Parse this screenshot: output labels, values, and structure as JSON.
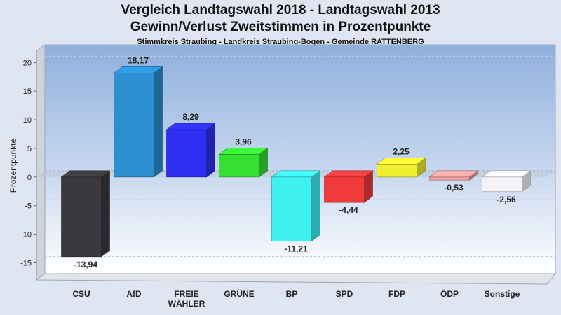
{
  "header": {
    "title_line1": "Vergleich Landtagswahl 2018 - Landtagswahl 2013",
    "title_line2": "Gewinn/Verlust Zweitstimmen in Prozentpunkte",
    "subtitle": "Stimmkreis Straubing - Landkreis Straubing-Bogen - Gemeinde RATTENBERG"
  },
  "chart_data": {
    "type": "bar",
    "title": "Vergleich Landtagswahl 2018 - Landtagswahl 2013",
    "subtitle": "Gewinn/Verlust Zweitstimmen in Prozentpunkte",
    "ylabel": "Prozentpunkte",
    "xlabel": "",
    "ylim": [
      -18,
      22
    ],
    "yticks": [
      20,
      15,
      10,
      5,
      0,
      -5,
      -10,
      -15
    ],
    "grid": true,
    "categories": [
      {
        "lines": [
          "CSU"
        ]
      },
      {
        "lines": [
          "AfD"
        ]
      },
      {
        "lines": [
          "FREIE",
          "WÄHLER"
        ]
      },
      {
        "lines": [
          "GRÜNE"
        ]
      },
      {
        "lines": [
          "BP"
        ]
      },
      {
        "lines": [
          "SPD"
        ]
      },
      {
        "lines": [
          "FDP"
        ]
      },
      {
        "lines": [
          "ÖDP"
        ]
      },
      {
        "lines": [
          "Sonstige"
        ]
      }
    ],
    "values": [
      -13.94,
      18.17,
      8.29,
      3.96,
      -11.21,
      -4.44,
      2.25,
      -0.53,
      -2.56
    ],
    "value_labels": [
      "-13,94",
      "18,17",
      "8,29",
      "3,96",
      "-11,21",
      "-4,44",
      "2,25",
      "-0,53",
      "-2,56"
    ],
    "colors": [
      "#3a3a3e",
      "#2b8fd0",
      "#2f2ff2",
      "#33e033",
      "#3ef2f2",
      "#f23a3a",
      "#f0f030",
      "#f0a0a0",
      "#f4f4f8"
    ]
  }
}
